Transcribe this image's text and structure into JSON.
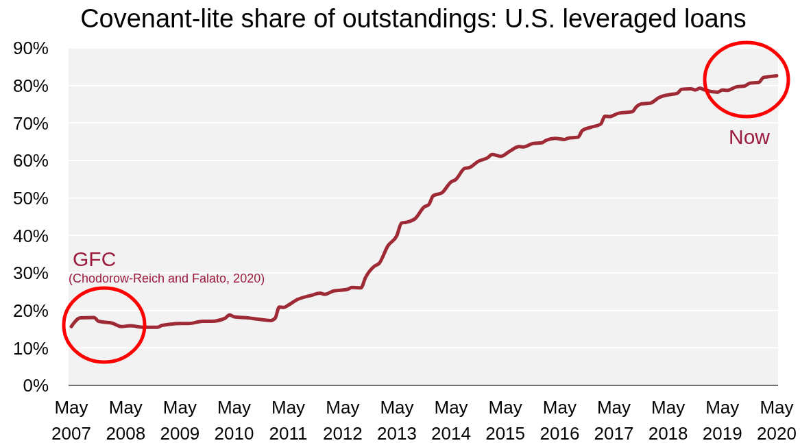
{
  "chart_data": {
    "type": "line",
    "title": "Covenant-lite share of outstandings: U.S. leveraged loans",
    "x": [
      "2007-05",
      "2007-07",
      "2007-10",
      "2007-11",
      "2008-02",
      "2008-04",
      "2008-06",
      "2008-09",
      "2008-12",
      "2009-01",
      "2009-05",
      "2009-07",
      "2009-10",
      "2009-12",
      "2010-03",
      "2010-04",
      "2010-05",
      "2010-08",
      "2010-10",
      "2011-01",
      "2011-02",
      "2011-03",
      "2011-04",
      "2011-05",
      "2011-07",
      "2011-10",
      "2011-12",
      "2012-01",
      "2012-03",
      "2012-06",
      "2012-07",
      "2012-09",
      "2012-10",
      "2012-12",
      "2013-01",
      "2013-03",
      "2013-05",
      "2013-06",
      "2013-07",
      "2013-09",
      "2013-11",
      "2013-12",
      "2014-01",
      "2014-03",
      "2014-05",
      "2014-06",
      "2014-08",
      "2014-09",
      "2014-11",
      "2015-01",
      "2015-02",
      "2015-04",
      "2015-06",
      "2015-08",
      "2015-09",
      "2015-11",
      "2016-01",
      "2016-02",
      "2016-04",
      "2016-06",
      "2016-07",
      "2016-09",
      "2016-10",
      "2016-12",
      "2017-02",
      "2017-03",
      "2017-04",
      "2017-06",
      "2017-09",
      "2017-10",
      "2017-11",
      "2018-01",
      "2018-03",
      "2018-05",
      "2018-07",
      "2018-08",
      "2018-10",
      "2018-11",
      "2018-12",
      "2019-01",
      "2019-04",
      "2019-05",
      "2019-06",
      "2019-08",
      "2019-10",
      "2019-11",
      "2020-01",
      "2020-02",
      "2020-03",
      "2020-05"
    ],
    "values": [
      15.7,
      18.0,
      18.1,
      17.1,
      16.6,
      15.7,
      15.9,
      15.5,
      15.5,
      16.0,
      16.5,
      16.5,
      17.1,
      17.1,
      17.9,
      18.8,
      18.3,
      18.0,
      17.7,
      17.3,
      17.9,
      20.9,
      20.8,
      21.4,
      22.9,
      24.0,
      24.6,
      24.3,
      25.2,
      25.6,
      26.1,
      26.0,
      28.7,
      31.8,
      32.5,
      37.2,
      40.0,
      43.3,
      43.5,
      44.5,
      47.6,
      48.2,
      50.6,
      51.4,
      54.3,
      54.9,
      57.9,
      58.1,
      59.8,
      60.7,
      61.6,
      61.1,
      62.5,
      63.7,
      63.6,
      64.5,
      64.7,
      65.4,
      65.9,
      65.6,
      66.0,
      66.2,
      68.0,
      68.9,
      69.7,
      71.8,
      71.7,
      72.6,
      73.0,
      74.4,
      75.1,
      75.3,
      76.8,
      77.5,
      77.9,
      79.0,
      79.1,
      78.8,
      79.3,
      78.8,
      78.2,
      78.8,
      78.7,
      79.6,
      79.9,
      80.6,
      80.8,
      82.1,
      82.3,
      82.6
    ],
    "color": "#9e2a36",
    "xlim": [
      "2007-05",
      "2020-05"
    ],
    "xticks": [
      {
        "value": "2007-05",
        "label": "May\n2007"
      },
      {
        "value": "2008-05",
        "label": "May\n2008"
      },
      {
        "value": "2009-05",
        "label": "May\n2009"
      },
      {
        "value": "2010-05",
        "label": "May\n2010"
      },
      {
        "value": "2011-05",
        "label": "May\n2011"
      },
      {
        "value": "2012-05",
        "label": "May\n2012"
      },
      {
        "value": "2013-05",
        "label": "May\n2013"
      },
      {
        "value": "2014-05",
        "label": "May\n2014"
      },
      {
        "value": "2015-05",
        "label": "May\n2015"
      },
      {
        "value": "2016-05",
        "label": "May\n2016"
      },
      {
        "value": "2017-05",
        "label": "May\n2017"
      },
      {
        "value": "2018-05",
        "label": "May\n2018"
      },
      {
        "value": "2019-05",
        "label": "May\n2019"
      },
      {
        "value": "2020-05",
        "label": "May\n2020"
      }
    ],
    "ylim": [
      0,
      90
    ],
    "yticks": [
      {
        "value": 0,
        "label": "0%"
      },
      {
        "value": 10,
        "label": "10%"
      },
      {
        "value": 20,
        "label": "20%"
      },
      {
        "value": 30,
        "label": "30%"
      },
      {
        "value": 40,
        "label": "40%"
      },
      {
        "value": 50,
        "label": "50%"
      },
      {
        "value": 60,
        "label": "60%"
      },
      {
        "value": 70,
        "label": "70%"
      },
      {
        "value": 80,
        "label": "80%"
      },
      {
        "value": 90,
        "label": "90%"
      }
    ],
    "grid": "y",
    "annotations": [
      "GFC",
      "(Chodorow-Reich and Falato, 2020)",
      "Now"
    ]
  }
}
